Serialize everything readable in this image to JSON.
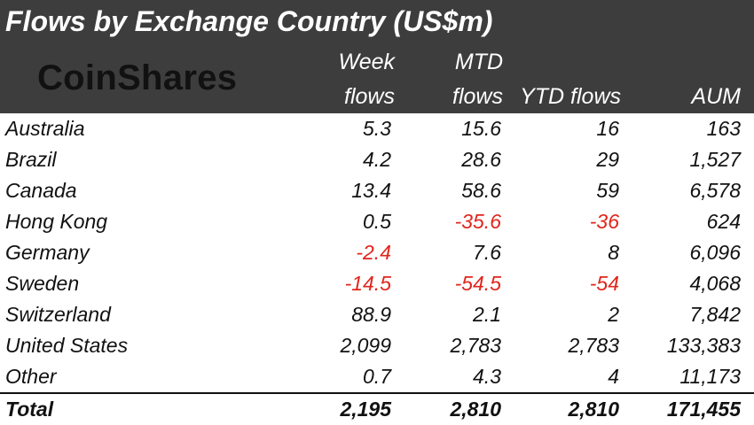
{
  "title": "Flows by Exchange Country (US$m)",
  "logo_text": "CoinShares",
  "colors": {
    "header_background": "#3d3d3d",
    "header_text": "#ffffff",
    "negative": "#e0261c",
    "text": "#111111"
  },
  "columns": [
    {
      "line1": "Week",
      "line2": "flows"
    },
    {
      "line1": "MTD",
      "line2": "flows"
    },
    {
      "line1": "",
      "line2": "YTD flows"
    },
    {
      "line1": "",
      "line2": "AUM"
    }
  ],
  "chart_data": {
    "type": "table",
    "title": "Flows by Exchange Country (US$m)",
    "columns": [
      "Week flows",
      "MTD flows",
      "YTD flows",
      "AUM"
    ],
    "rows": [
      {
        "label": "Australia",
        "values": [
          "5.3",
          "15.6",
          "16",
          "163"
        ]
      },
      {
        "label": "Brazil",
        "values": [
          "4.2",
          "28.6",
          "29",
          "1,527"
        ]
      },
      {
        "label": "Canada",
        "values": [
          "13.4",
          "58.6",
          "59",
          "6,578"
        ]
      },
      {
        "label": "Hong Kong",
        "values": [
          "0.5",
          "-35.6",
          "-36",
          "624"
        ]
      },
      {
        "label": "Germany",
        "values": [
          "-2.4",
          "7.6",
          "8",
          "6,096"
        ]
      },
      {
        "label": "Sweden",
        "values": [
          "-14.5",
          "-54.5",
          "-54",
          "4,068"
        ]
      },
      {
        "label": "Switzerland",
        "values": [
          "88.9",
          "2.1",
          "2",
          "7,842"
        ]
      },
      {
        "label": "United States",
        "values": [
          "2,099",
          "2,783",
          "2,783",
          "133,383"
        ]
      },
      {
        "label": "Other",
        "values": [
          "0.7",
          "4.3",
          "4",
          "11,173"
        ]
      }
    ],
    "total": {
      "label": "Total",
      "values": [
        "2,195",
        "2,810",
        "2,810",
        "171,455"
      ]
    }
  }
}
